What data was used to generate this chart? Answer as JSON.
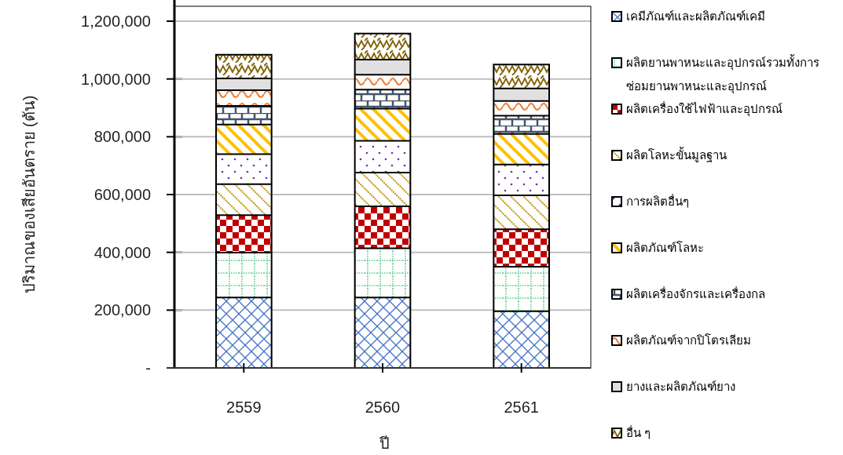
{
  "chart_data": {
    "type": "bar",
    "stacked": true,
    "xlabel": "ปี",
    "ylabel": "ปริมาณของเสียอันตราย (ตัน)",
    "categories": [
      "2559",
      "2560",
      "2561"
    ],
    "ylim": [
      0,
      1200000
    ],
    "yticks": [
      {
        "value": 0,
        "label": "-"
      },
      {
        "value": 200000,
        "label": "200,000"
      },
      {
        "value": 400000,
        "label": "400,000"
      },
      {
        "value": 600000,
        "label": "600,000"
      },
      {
        "value": 800000,
        "label": "800,000"
      },
      {
        "value": 1000000,
        "label": "1,000,000"
      },
      {
        "value": 1200000,
        "label": "1,200,000"
      }
    ],
    "grid": "y",
    "legend": "right",
    "series": [
      {
        "name": "เคมีภัณฑ์และผลิตภัณฑ์เคมี",
        "color": "#4472c4",
        "values": [
          244000,
          244000,
          196000
        ]
      },
      {
        "name": "ผลิตยานพาหนะและอุปกรณ์รวมทั้งการซ่อมยานพาหนะและอุปกรณ์",
        "color": "#00b050",
        "values": [
          155000,
          170000,
          154000
        ]
      },
      {
        "name": "ผลิตเครื่องใช้ไฟฟ้าและอุปกรณ์",
        "color": "#c00000",
        "values": [
          130000,
          145000,
          130000
        ]
      },
      {
        "name": "ผลิตโลหะขั้นมูลฐาน",
        "color": "#bf9000",
        "values": [
          107000,
          117000,
          117000
        ]
      },
      {
        "name": "การผลิตอื่นๆ",
        "color": "#7030a0",
        "values": [
          104000,
          110000,
          107000
        ]
      },
      {
        "name": "ผลิตภัณฑ์โลหะ",
        "color": "#ffc000",
        "values": [
          102000,
          111000,
          106000
        ]
      },
      {
        "name": "ผลิตเครื่องจักรและเครื่องกล",
        "color": "#44546a",
        "values": [
          65000,
          66000,
          63000
        ]
      },
      {
        "name": "ผลิตภัณฑ์จากปิโตรเลียม",
        "color": "#ed7d31",
        "values": [
          54000,
          52000,
          51000
        ]
      },
      {
        "name": "ยางและผลิตภัณฑ์ยาง",
        "color": "#a5a5a5",
        "values": [
          41000,
          52000,
          43000
        ]
      },
      {
        "name": "อื่น ๆ",
        "color": "#806000",
        "values": [
          82000,
          90000,
          83000
        ]
      }
    ]
  }
}
